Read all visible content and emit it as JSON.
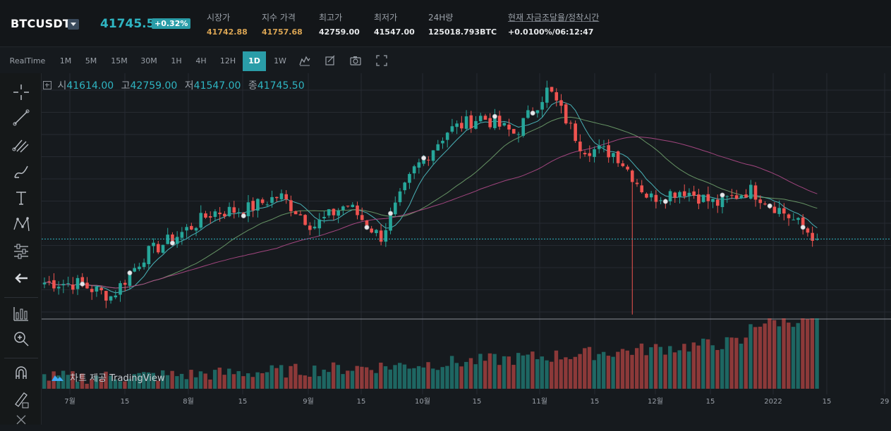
{
  "header": {
    "symbol": "BTCUSDT",
    "last_price": "41745.5",
    "change_pct": "+0.32%",
    "stats": [
      {
        "label": "시장가",
        "value": "41742.88",
        "color": "#d9a453"
      },
      {
        "label": "지수 가격",
        "value": "41757.68",
        "color": "#d9a453"
      },
      {
        "label": "최고가",
        "value": "42759.00",
        "color": "#e6e8ea"
      },
      {
        "label": "최저가",
        "value": "41547.00",
        "color": "#e6e8ea"
      },
      {
        "label": "24H량",
        "value": "125018.793BTC",
        "color": "#e6e8ea"
      },
      {
        "label": "현재 자금조달율/정착시간",
        "value": "+0.0100%/06:12:47",
        "color": "#e6e8ea"
      }
    ]
  },
  "toolbar": {
    "timeframes": [
      "RealTime",
      "1M",
      "5M",
      "15M",
      "30M",
      "1H",
      "4H",
      "12H",
      "1D",
      "1W"
    ],
    "active": "1D",
    "icons": [
      "candle-type-icon",
      "indicator-icon",
      "camera-icon",
      "fullscreen-icon"
    ]
  },
  "ohlc": {
    "open_label": "시",
    "open": "41614.00",
    "high_label": "고",
    "high": "42759.00",
    "low_label": "저",
    "low": "41547.00",
    "close_label": "종",
    "close": "41745.50"
  },
  "left_tools": [
    "crosshair-icon",
    "trend-line-icon",
    "pitchfork-icon",
    "brush-icon",
    "text-icon",
    "pattern-icon",
    "measure-icon",
    "back-arrow-icon",
    "bar-chart-icon",
    "zoom-icon",
    "magnet-icon",
    "lock-draw-icon",
    "collapse-icon"
  ],
  "attribution": "차트 제공 TradingView",
  "colors": {
    "up": "#26a69a",
    "down": "#ef5350",
    "accent": "#2a9da8",
    "grid": "#262a31"
  },
  "chart_data": {
    "type": "candlestick",
    "x_axis_labels": [
      "7월",
      "15",
      "8월",
      "15",
      "9월",
      "15",
      "10월",
      "15",
      "11월",
      "15",
      "12월",
      "15",
      "2022",
      "15",
      "29"
    ],
    "price_line": 41745.5,
    "ylim": [
      28000,
      69500
    ],
    "price_anchors_by_week": [
      34000,
      33800,
      31500,
      39000,
      42500,
      46500,
      47000,
      49500,
      44000,
      48000,
      42000,
      54000,
      61000,
      63500,
      60500,
      68500,
      58000,
      57000,
      49000,
      50500,
      48000,
      50500,
      46500,
      41745.5
    ],
    "volume_note": "volume bars below price panel, red/green by candle direction"
  }
}
